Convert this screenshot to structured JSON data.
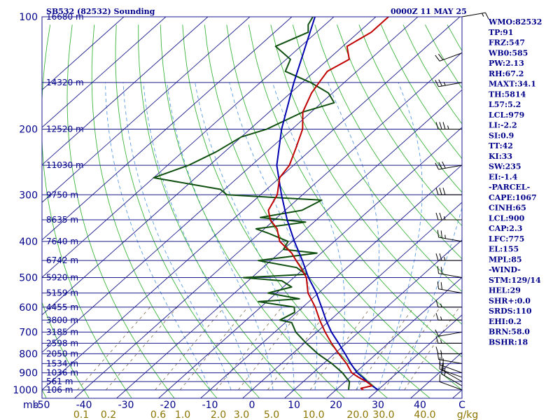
{
  "header": {
    "station_title": "SB532 (82532) Sounding",
    "valid_time": "0000Z 11 MAY 25"
  },
  "colors": {
    "isobar": "#1a1a8c",
    "isotherm": "#1a1a8c",
    "dry_adiabat": "#3cb43c",
    "moist_adiabat": "#5a9be0",
    "mixing_ratio": "#7a6a4a",
    "temperature": "#c00000",
    "dewpoint": "#0f4f0f",
    "parcel": "#0000b0",
    "wind": "#000000",
    "axis_text": "#00008b",
    "mixing_text": "#8b7500"
  },
  "chart_data": {
    "type": "line",
    "title": "SB532 (82532) Sounding",
    "subtitle": "0000Z 11 MAY 25",
    "xlabel": "",
    "ylabel": "mb",
    "y_scale": "log",
    "ylim": [
      1000,
      100
    ],
    "xlim": [
      -50,
      50
    ],
    "pressure_ticks": [
      100,
      200,
      300,
      400,
      500,
      600,
      700,
      800,
      900,
      1000
    ],
    "temperature_ticks": [
      "-50",
      "-40",
      "-30",
      "-20",
      "-10",
      "0",
      "10",
      "20",
      "30",
      "40",
      "C"
    ],
    "mixing_ratio_labels": [
      "0.1",
      "0.2",
      "0.6",
      "1.0",
      "2.0",
      "3.0",
      "5.0",
      "10.0",
      "20.0",
      "30.0",
      "40.0",
      "g/kg"
    ],
    "height_labels": [
      {
        "p": 100,
        "label": "16680 m"
      },
      {
        "p": 150,
        "label": "14320 m"
      },
      {
        "p": 200,
        "label": "12520 m"
      },
      {
        "p": 250,
        "label": "11030 m"
      },
      {
        "p": 300,
        "label": "9750 m"
      },
      {
        "p": 350,
        "label": "8635 m"
      },
      {
        "p": 400,
        "label": "7640 m"
      },
      {
        "p": 450,
        "label": "6742 m"
      },
      {
        "p": 500,
        "label": "5920 m"
      },
      {
        "p": 550,
        "label": "5159 m"
      },
      {
        "p": 600,
        "label": "4455 m"
      },
      {
        "p": 650,
        "label": "3800 m"
      },
      {
        "p": 700,
        "label": "3185 m"
      },
      {
        "p": 750,
        "label": "2598 m"
      },
      {
        "p": 800,
        "label": "2050 m"
      },
      {
        "p": 850,
        "label": "1534 m"
      },
      {
        "p": 900,
        "label": "1036 m"
      },
      {
        "p": 950,
        "label": "561 m"
      },
      {
        "p": 1000,
        "label": "106 m"
      }
    ],
    "series": [
      {
        "key": "temperature",
        "p": [
          1000,
          990,
          975,
          950,
          925,
          900,
          850,
          800,
          750,
          700,
          650,
          600,
          550,
          500,
          470,
          450,
          430,
          400,
          370,
          350,
          330,
          300,
          270,
          250,
          225,
          200,
          180,
          160,
          150,
          140,
          130,
          120,
          110,
          100
        ],
        "t": [
          26.5,
          25.5,
          27.5,
          25.0,
          22.0,
          19.2,
          15.5,
          11.0,
          6.5,
          2.0,
          -2.5,
          -7.0,
          -12.5,
          -17.0,
          -21.0,
          -24.0,
          -27.0,
          -33.0,
          -37.0,
          -41.0,
          -44.0,
          -46.0,
          -50.0,
          -51.0,
          -54.0,
          -57.5,
          -62.0,
          -65.0,
          -66.0,
          -67.0,
          -65.0,
          -69.0,
          -67.0,
          -67.0
        ]
      },
      {
        "key": "dewpoint",
        "p": [
          1000,
          975,
          950,
          925,
          900,
          850,
          800,
          750,
          700,
          660,
          650,
          620,
          600,
          580,
          570,
          550,
          530,
          510,
          500,
          490,
          470,
          450,
          430,
          420,
          400,
          380,
          370,
          355,
          345,
          330,
          310,
          300,
          290,
          270,
          250,
          230,
          210,
          200,
          180,
          170,
          160,
          150,
          140,
          130,
          120,
          110,
          105,
          100
        ],
        "t": [
          23.0,
          22.0,
          21.0,
          19.0,
          17.0,
          12.0,
          6.0,
          0.5,
          -5.0,
          -8.5,
          -12.0,
          -10.5,
          -12.0,
          -22.0,
          -13.0,
          -22.0,
          -18.0,
          -22.0,
          -32.0,
          -18.0,
          -22.0,
          -33.0,
          -21.0,
          -30.0,
          -31.0,
          -38.0,
          -42.0,
          -32.0,
          -44.0,
          -36.0,
          -34.0,
          -58.0,
          -61.0,
          -80.0,
          -75.0,
          -72.0,
          -70.0,
          -66.0,
          -62.0,
          -57.0,
          -61.0,
          -68.0,
          -77.0,
          -79.0,
          -86.0,
          -82.0,
          -84.0,
          -85.0
        ]
      },
      {
        "key": "parcel",
        "p": [
          1000,
          975,
          950,
          925,
          900,
          850,
          800,
          750,
          700,
          650,
          600,
          550,
          500,
          450,
          400,
          350,
          300,
          250,
          200,
          150,
          100
        ],
        "t": [
          30.0,
          27.5,
          25.2,
          23.0,
          20.5,
          16.5,
          12.5,
          8.2,
          3.5,
          -1.0,
          -5.5,
          -10.5,
          -16.5,
          -22.5,
          -29.5,
          -37.0,
          -45.0,
          -54.0,
          -62.5,
          -72.0,
          -84.5
        ]
      }
    ],
    "winds": [
      {
        "p": 1000,
        "spd": 10,
        "dir": 290
      },
      {
        "p": 975,
        "spd": 15,
        "dir": 300
      },
      {
        "p": 950,
        "spd": 15,
        "dir": 300
      },
      {
        "p": 925,
        "spd": 20,
        "dir": 290
      },
      {
        "p": 900,
        "spd": 20,
        "dir": 290
      },
      {
        "p": 850,
        "spd": 20,
        "dir": 280
      },
      {
        "p": 800,
        "spd": 15,
        "dir": 270
      },
      {
        "p": 750,
        "spd": 15,
        "dir": 270
      },
      {
        "p": 700,
        "spd": 10,
        "dir": 260
      },
      {
        "p": 650,
        "spd": 15,
        "dir": 270
      },
      {
        "p": 600,
        "spd": 15,
        "dir": 270
      },
      {
        "p": 550,
        "spd": 20,
        "dir": 280
      },
      {
        "p": 500,
        "spd": 20,
        "dir": 280
      },
      {
        "p": 450,
        "spd": 25,
        "dir": 270
      },
      {
        "p": 400,
        "spd": 25,
        "dir": 280
      },
      {
        "p": 350,
        "spd": 25,
        "dir": 270
      },
      {
        "p": 300,
        "spd": 30,
        "dir": 270
      },
      {
        "p": 250,
        "spd": 30,
        "dir": 260
      },
      {
        "p": 200,
        "spd": 35,
        "dir": 270
      },
      {
        "p": 150,
        "spd": 25,
        "dir": 260
      },
      {
        "p": 125,
        "spd": 20,
        "dir": 250
      },
      {
        "p": 100,
        "spd": 15,
        "dir": 80
      }
    ],
    "legend": "none",
    "grid": true
  },
  "indices": [
    "WMO:82532",
    "TP:91",
    "FRZ:547",
    "WB0:585",
    "PW:2.13",
    "RH:67.2",
    "MAXT:34.1",
    "TH:5814",
    "L57:5.2",
    "LCL:979",
    "LI:-2.2",
    "SI:0.9",
    "TT:42",
    "KI:33",
    "SW:235",
    "EI:-1.4",
    "-PARCEL-",
    "CAPE:1067",
    "CINH:65",
    "LCL:900",
    "CAP:2.3",
    "LFC:775",
    "EL:155",
    "MPL:85",
    "-WIND-",
    "STM:129/14",
    "HEL:29",
    "SHR+:0.0",
    "SRDS:110",
    "EHI:0.2",
    "BRN:58.0",
    "BSHR:18"
  ]
}
